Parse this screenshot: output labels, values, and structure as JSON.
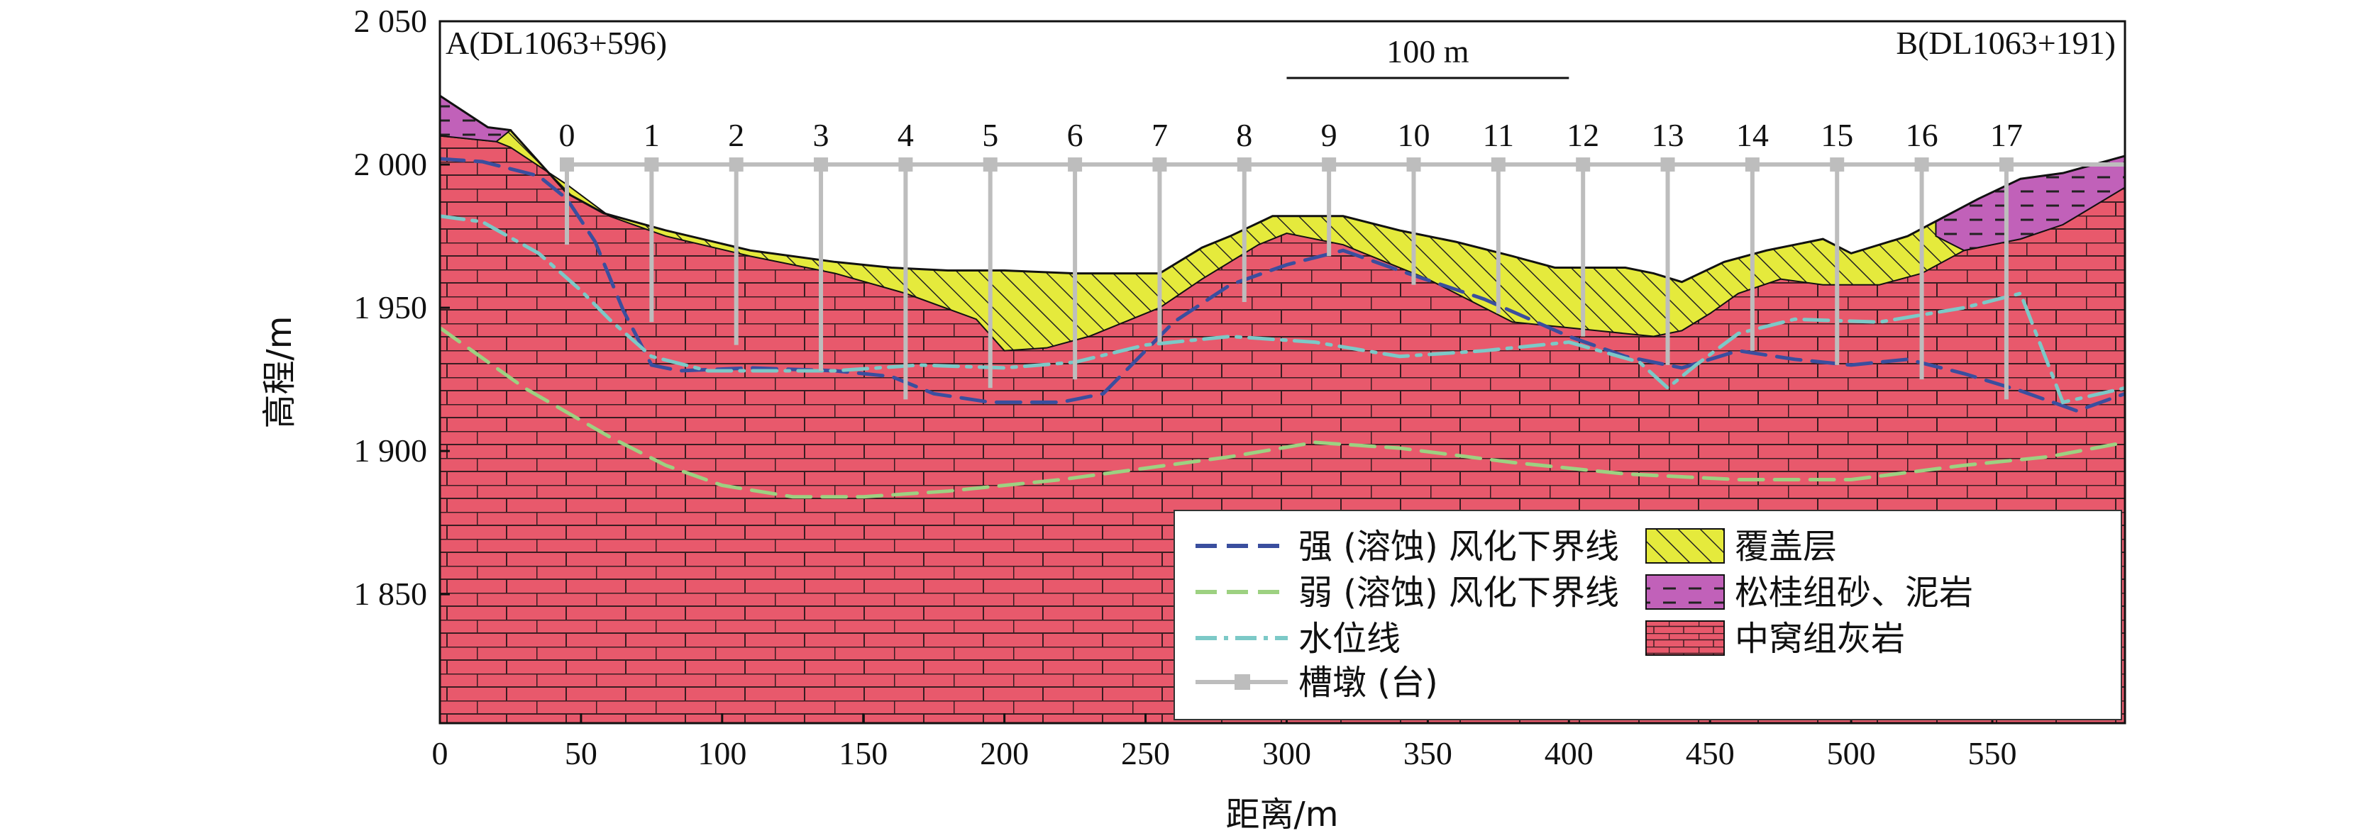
{
  "chart_data": {
    "type": "geologic-profile",
    "xlabel": "距离/m",
    "ylabel": "高程/m",
    "xlim": [
      0,
      597
    ],
    "ylim": [
      1805,
      2050
    ],
    "x_ticks": [
      0,
      50,
      100,
      150,
      200,
      250,
      300,
      350,
      400,
      450,
      500,
      550
    ],
    "x_tick_labels": [
      "0",
      "50",
      "100",
      "150",
      "200",
      "250",
      "300",
      "350",
      "400",
      "450",
      "500",
      "550"
    ],
    "y_ticks": [
      1850,
      1900,
      1950,
      2000,
      2050
    ],
    "y_tick_labels": [
      "1 850",
      "1 900",
      "1 950",
      "2 000",
      "2 050"
    ],
    "left_endpoint_label": "A(DL1063+596)",
    "right_endpoint_label": "B(DL1063+191)",
    "scale_bar": {
      "label": "100 m",
      "x_start": 300,
      "x_end": 400
    },
    "colors": {
      "limestone_fill": "#e8596c",
      "brick_line": "#333333",
      "cover_fill": "#e5ea3c",
      "sandstone_fill": "#c161b9",
      "strong_weathering": "#3a4e9e",
      "weak_weathering": "#9dd181",
      "water_level": "#7cc9c7",
      "pier": "#bdbdbd"
    },
    "ground_surface": {
      "x": [
        0,
        17,
        25,
        45,
        58,
        80,
        110,
        140,
        160,
        180,
        200,
        225,
        235,
        255,
        270,
        280,
        295,
        320,
        340,
        360,
        380,
        395,
        420,
        430,
        440,
        455,
        470,
        490,
        500,
        520,
        545,
        560,
        575,
        597
      ],
      "y": [
        2024,
        2013,
        2012,
        1990,
        1983,
        1977,
        1970,
        1966,
        1964,
        1963,
        1963,
        1962,
        1962,
        1962,
        1971,
        1975,
        1982,
        1982,
        1977,
        1973,
        1968,
        1964,
        1964,
        1962,
        1959,
        1966,
        1970,
        1974,
        1969,
        1975,
        1988,
        1995,
        1997,
        2003
      ]
    },
    "bedrock_surface": {
      "x": [
        0,
        20,
        25,
        45,
        60,
        80,
        110,
        140,
        165,
        190,
        200,
        215,
        230,
        255,
        270,
        290,
        300,
        320,
        350,
        380,
        410,
        430,
        440,
        450,
        460,
        475,
        490,
        510,
        525,
        540,
        560,
        575,
        597
      ],
      "y": [
        2010,
        2008,
        2006,
        1993,
        1982,
        1975,
        1968,
        1962,
        1955,
        1946,
        1935,
        1936,
        1940,
        1950,
        1960,
        1972,
        1976,
        1972,
        1960,
        1945,
        1942,
        1940,
        1942,
        1948,
        1955,
        1960,
        1958,
        1958,
        1962,
        1970,
        1974,
        1979,
        1992
      ]
    },
    "sandstone_layers": [
      {
        "x": [
          0,
          17,
          25,
          20,
          0
        ],
        "y": [
          2024,
          2013,
          2012,
          2008,
          2010
        ]
      },
      {
        "x": [
          530,
          545,
          560,
          575,
          597,
          597,
          575,
          560,
          540,
          530
        ],
        "y": [
          1980,
          1988,
          1995,
          1997,
          2003,
          1992,
          1979,
          1974,
          1970,
          1975
        ]
      }
    ],
    "series": [
      {
        "name": "强 (溶蚀) 风化下界线",
        "style": "dash",
        "x": [
          0,
          15,
          35,
          45,
          55,
          65,
          75,
          85,
          110,
          140,
          160,
          175,
          195,
          220,
          235,
          250,
          260,
          280,
          300,
          320,
          340,
          370,
          400,
          420,
          440,
          460,
          480,
          500,
          520,
          540,
          560,
          580,
          597
        ],
        "y": [
          2002,
          2001,
          1996,
          1988,
          1973,
          1949,
          1930,
          1928,
          1929,
          1928,
          1926,
          1920,
          1917,
          1917,
          1920,
          1935,
          1945,
          1958,
          1965,
          1970,
          1963,
          1953,
          1940,
          1933,
          1929,
          1935,
          1932,
          1930,
          1932,
          1927,
          1921,
          1914,
          1920
        ]
      },
      {
        "name": "弱 (溶蚀) 风化下界线",
        "style": "dash",
        "x": [
          0,
          30,
          60,
          80,
          100,
          125,
          150,
          180,
          220,
          250,
          280,
          310,
          340,
          380,
          420,
          460,
          500,
          540,
          570,
          597
        ],
        "y": [
          1943,
          1922,
          1905,
          1895,
          1888,
          1884,
          1884,
          1886,
          1890,
          1894,
          1898,
          1903,
          1901,
          1896,
          1892,
          1890,
          1890,
          1895,
          1898,
          1903
        ]
      },
      {
        "name": "水位线",
        "style": "dashdot",
        "x": [
          0,
          15,
          35,
          50,
          60,
          75,
          95,
          110,
          140,
          170,
          200,
          225,
          250,
          280,
          310,
          340,
          370,
          400,
          425,
          435,
          445,
          460,
          480,
          510,
          540,
          560,
          575,
          597
        ],
        "y": [
          1982,
          1980,
          1969,
          1956,
          1946,
          1933,
          1928,
          1928,
          1928,
          1930,
          1929,
          1931,
          1937,
          1940,
          1938,
          1933,
          1935,
          1938,
          1931,
          1922,
          1930,
          1941,
          1946,
          1945,
          1950,
          1955,
          1917,
          1922
        ]
      },
      {
        "name": "槽墩 (台)",
        "style": "pier",
        "pier_labels": [
          "0",
          "1",
          "2",
          "3",
          "4",
          "5",
          "6",
          "7",
          "8",
          "9",
          "10",
          "11",
          "12",
          "13",
          "14",
          "15",
          "16",
          "17"
        ],
        "x": [
          45,
          75,
          105,
          135,
          165,
          195,
          225,
          255,
          285,
          315,
          345,
          375,
          405,
          435,
          465,
          495,
          525,
          555
        ],
        "top": 2000,
        "bottom": [
          1972,
          1945,
          1937,
          1928,
          1918,
          1922,
          1925,
          1938,
          1952,
          1968,
          1958,
          1948,
          1940,
          1930,
          1935,
          1930,
          1925,
          1918
        ]
      }
    ],
    "legend": {
      "placement": "bottom-right",
      "items": [
        {
          "label": "强 (溶蚀) 风化下界线",
          "kind": "strong"
        },
        {
          "label": "覆盖层",
          "kind": "cover"
        },
        {
          "label": "弱 (溶蚀) 风化下界线",
          "kind": "weak"
        },
        {
          "label": "松桂组砂、泥岩",
          "kind": "sandstone"
        },
        {
          "label": "水位线",
          "kind": "water"
        },
        {
          "label": "中窝组灰岩",
          "kind": "limestone"
        },
        {
          "label": "槽墩 (台)",
          "kind": "pier"
        }
      ]
    }
  }
}
